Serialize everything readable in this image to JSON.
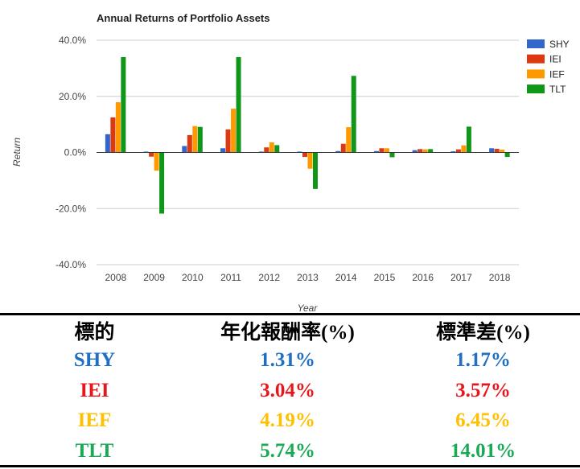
{
  "chart_data": {
    "type": "bar",
    "title": "Annual Returns of Portfolio Assets",
    "xlabel": "Year",
    "ylabel": "Return",
    "ylim": [
      -40,
      40
    ],
    "yticks": [
      "-40.0%",
      "-20.0%",
      "0.0%",
      "20.0%",
      "40.0%"
    ],
    "ytick_values": [
      -40,
      -20,
      0,
      20,
      40
    ],
    "categories": [
      "2008",
      "2009",
      "2010",
      "2011",
      "2012",
      "2013",
      "2014",
      "2015",
      "2016",
      "2017",
      "2018"
    ],
    "legend_position": "right",
    "grid": true,
    "series": [
      {
        "name": "SHY",
        "color": "#3366cc",
        "values": [
          6.5,
          0.3,
          2.3,
          1.5,
          0.3,
          0.3,
          0.5,
          0.5,
          0.8,
          0.4,
          1.5
        ]
      },
      {
        "name": "IEI",
        "color": "#dc3912",
        "values": [
          12.5,
          -1.5,
          6.2,
          8.2,
          1.8,
          -1.6,
          3.1,
          1.5,
          1.2,
          1.1,
          1.3
        ]
      },
      {
        "name": "IEF",
        "color": "#ff9900",
        "values": [
          17.9,
          -6.5,
          9.4,
          15.6,
          3.6,
          -5.8,
          9.0,
          1.5,
          1.1,
          2.5,
          1.0
        ]
      },
      {
        "name": "TLT",
        "color": "#109618",
        "values": [
          34.0,
          -21.8,
          9.1,
          34.0,
          2.6,
          -13.0,
          27.3,
          -1.7,
          1.2,
          9.2,
          -1.6
        ]
      }
    ]
  },
  "stats_table": {
    "headers": [
      "標的",
      "年化報酬率(%)",
      "標準差(%)"
    ],
    "rows": [
      {
        "ticker": "SHY",
        "return": "1.31%",
        "stdev": "1.17%",
        "color": "#1f6fc5"
      },
      {
        "ticker": "IEI",
        "return": "3.04%",
        "stdev": "3.57%",
        "color": "#e8161b"
      },
      {
        "ticker": "IEF",
        "return": "4.19%",
        "stdev": "6.45%",
        "color": "#ffc000"
      },
      {
        "ticker": "TLT",
        "return": "5.74%",
        "stdev": "14.01%",
        "color": "#1aaa55"
      }
    ]
  }
}
